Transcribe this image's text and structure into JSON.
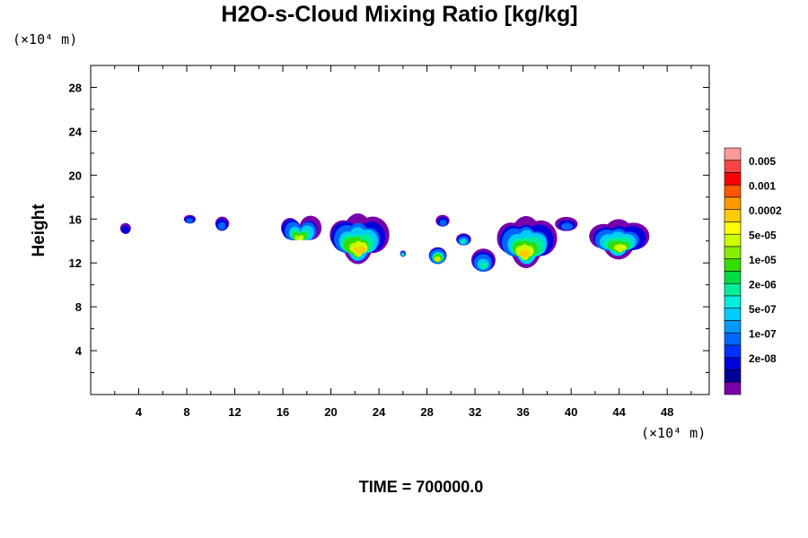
{
  "chart_data": {
    "type": "heatmap",
    "title": "H2O-s-Cloud Mixing Ratio [kg/kg]",
    "ylabel": "Height",
    "x_unit_label": "(×10⁴ m)",
    "y_unit_label": "(×10⁴ m)",
    "xlim": [
      0,
      51.5
    ],
    "ylim": [
      0,
      30
    ],
    "xticks": [
      4,
      8,
      12,
      16,
      20,
      24,
      28,
      32,
      36,
      40,
      44,
      48
    ],
    "yticks": [
      4,
      8,
      12,
      16,
      20,
      24,
      28
    ],
    "time_label": "TIME = 700000.0",
    "colorbar": {
      "labels": [
        "0.005",
        "0.001",
        "0.0002",
        "5e-05",
        "1e-05",
        "2e-06",
        "5e-07",
        "1e-07",
        "2e-08"
      ],
      "colors": [
        "#ff9999",
        "#ff4444",
        "#ff0000",
        "#ff5500",
        "#ff9900",
        "#ffcc00",
        "#ffff00",
        "#ccff00",
        "#88ee00",
        "#33dd00",
        "#00dd44",
        "#00ee99",
        "#00eedd",
        "#00ccff",
        "#0099ff",
        "#0066ff",
        "#0033ff",
        "#0000dd",
        "#000099",
        "#7700aa"
      ]
    },
    "cloud_regions": [
      {
        "x": [
          2.3,
          3.5
        ],
        "y": [
          14.5,
          15.8
        ],
        "max_level": "2e-08"
      },
      {
        "x": [
          7.6,
          8.9
        ],
        "y": [
          15.5,
          16.5
        ],
        "max_level": "1e-07"
      },
      {
        "x": [
          10.2,
          11.7
        ],
        "y": [
          14.8,
          16.4
        ],
        "max_level": "1e-07"
      },
      {
        "x": [
          15.9,
          19.0
        ],
        "y": [
          13.3,
          16.6
        ],
        "max_level": "5e-05"
      },
      {
        "x": [
          20.0,
          24.5
        ],
        "y": [
          11.8,
          16.6
        ],
        "max_level": "0.0002"
      },
      {
        "x": [
          25.7,
          26.3
        ],
        "y": [
          12.5,
          13.2
        ],
        "max_level": "1e-05"
      },
      {
        "x": [
          28.0,
          29.8
        ],
        "y": [
          11.8,
          13.6
        ],
        "max_level": "0.0002"
      },
      {
        "x": [
          28.6,
          30.0
        ],
        "y": [
          15.2,
          16.5
        ],
        "max_level": "1e-07"
      },
      {
        "x": [
          30.3,
          31.8
        ],
        "y": [
          13.5,
          14.8
        ],
        "max_level": "2e-06"
      },
      {
        "x": [
          31.5,
          33.9
        ],
        "y": [
          11.0,
          13.5
        ],
        "max_level": "2e-06"
      },
      {
        "x": [
          34.0,
          38.5
        ],
        "y": [
          11.5,
          16.3
        ],
        "max_level": "0.0002"
      },
      {
        "x": [
          38.5,
          40.7
        ],
        "y": [
          14.8,
          16.3
        ],
        "max_level": "1e-07"
      },
      {
        "x": [
          41.7,
          46.2
        ],
        "y": [
          12.3,
          16.0
        ],
        "max_level": "5e-05"
      }
    ]
  }
}
